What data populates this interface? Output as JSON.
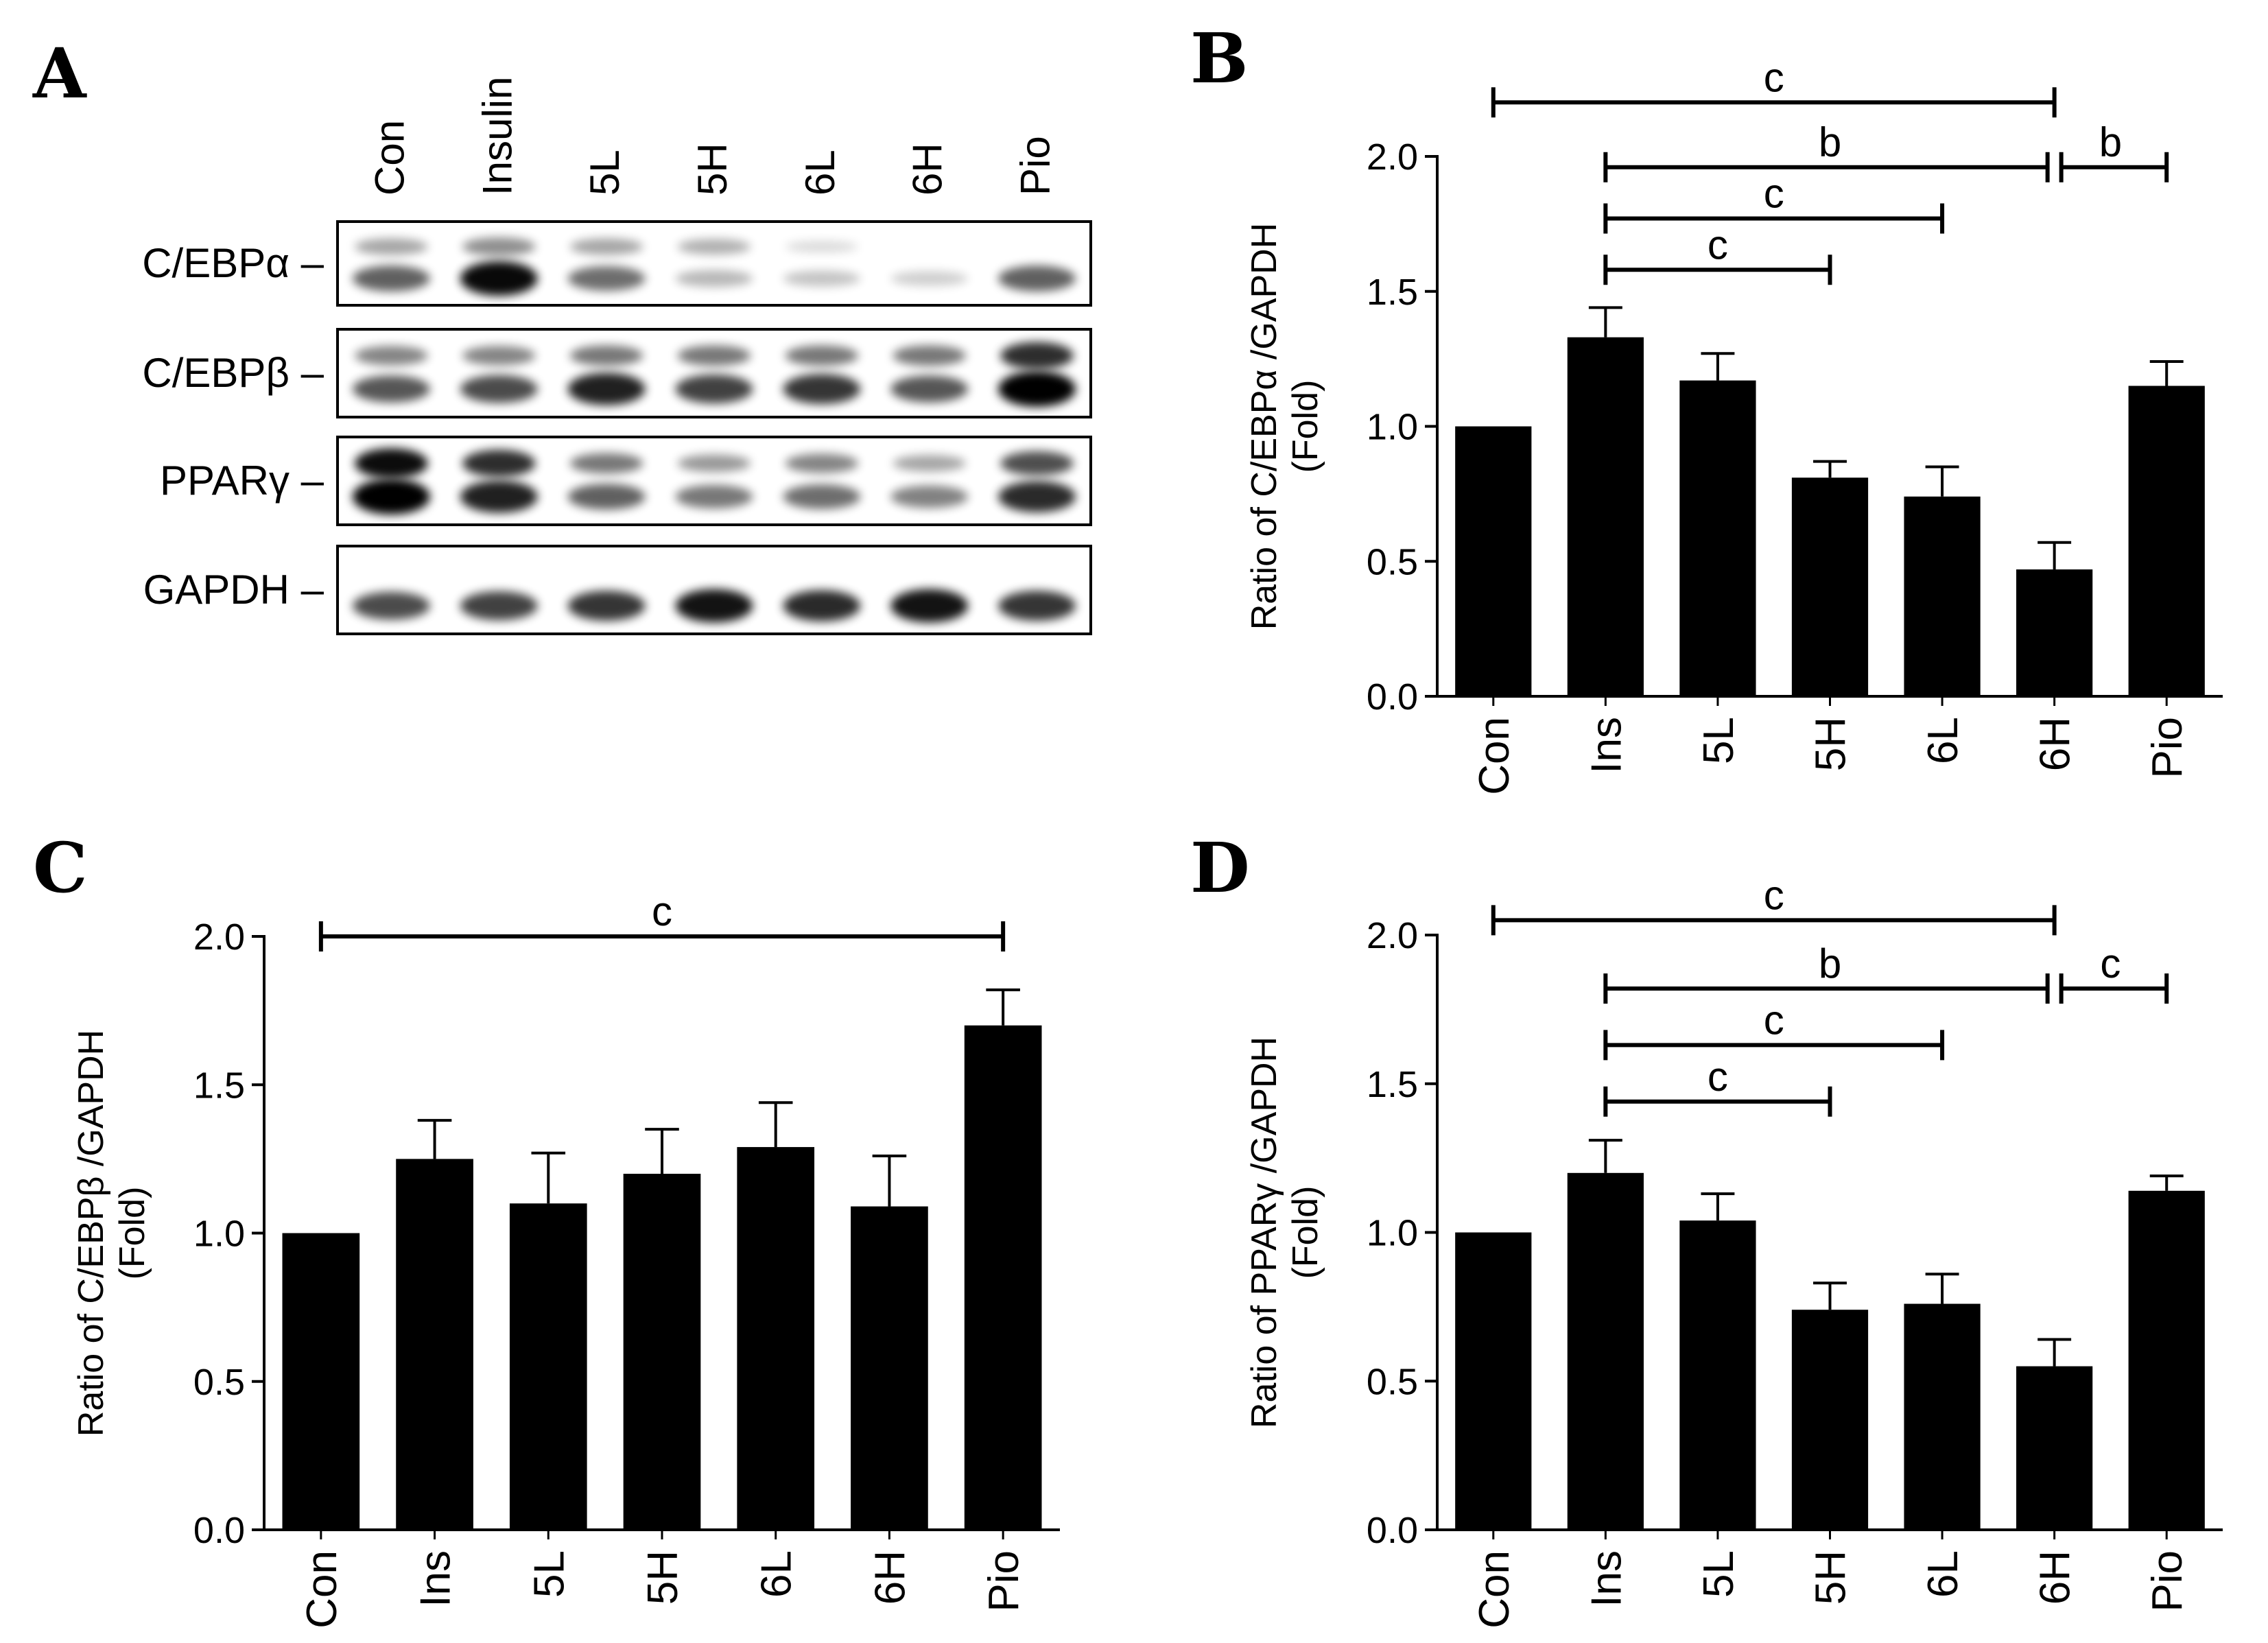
{
  "panel_a": {
    "letter": "A",
    "lanes": [
      "Con",
      "Insulin",
      "5L",
      "5H",
      "6L",
      "6H",
      "Pio"
    ],
    "blots": [
      {
        "label": "C/EBPα –",
        "bands": [
          0.55,
          0.95,
          0.5,
          0.15,
          0.1,
          0.05,
          0.55
        ],
        "upper": [
          0.3,
          0.4,
          0.3,
          0.25,
          0.05,
          0.0,
          0.0
        ]
      },
      {
        "label": "C/EBPβ –",
        "bands": [
          0.6,
          0.65,
          0.85,
          0.7,
          0.75,
          0.6,
          1.0
        ],
        "upper": [
          0.45,
          0.45,
          0.5,
          0.5,
          0.5,
          0.5,
          0.85
        ]
      },
      {
        "label": "PPARγ –",
        "bands": [
          1.0,
          0.85,
          0.55,
          0.45,
          0.5,
          0.4,
          0.8
        ],
        "upper": [
          1.0,
          0.85,
          0.5,
          0.35,
          0.45,
          0.3,
          0.7
        ]
      },
      {
        "label": "GAPDH –",
        "bands": [
          0.65,
          0.7,
          0.75,
          0.9,
          0.8,
          0.9,
          0.75
        ],
        "upper": [
          0,
          0,
          0,
          0,
          0,
          0,
          0
        ]
      }
    ]
  },
  "chart_data": [
    {
      "panel": "B",
      "type": "bar",
      "ylabel_line1": "Ratio of C/EBPα /GAPDH",
      "ylabel_line2": "(Fold)",
      "categories": [
        "Con",
        "Ins",
        "5L",
        "5H",
        "6L",
        "6H",
        "Pio"
      ],
      "values": [
        1.0,
        1.33,
        1.17,
        0.81,
        0.74,
        0.47,
        1.15
      ],
      "errors": [
        0.0,
        0.11,
        0.1,
        0.06,
        0.11,
        0.1,
        0.09
      ],
      "ylim": [
        0,
        2.0
      ],
      "yticks": [
        "0.0",
        "0.5",
        "1.0",
        "1.5",
        "2.0"
      ],
      "brackets": [
        {
          "from": 0,
          "to": 5,
          "y": 2.2,
          "label": "c"
        },
        {
          "from": 1,
          "to": 5,
          "y": 1.96,
          "label": "b"
        },
        {
          "from": 5,
          "to": 6,
          "y": 1.96,
          "label": "b"
        },
        {
          "from": 1,
          "to": 4,
          "y": 1.77,
          "label": "c"
        },
        {
          "from": 1,
          "to": 3,
          "y": 1.58,
          "label": "c"
        }
      ]
    },
    {
      "panel": "C",
      "type": "bar",
      "ylabel_line1": "Ratio of C/EBPβ /GAPDH",
      "ylabel_line2": "(Fold)",
      "categories": [
        "Con",
        "Ins",
        "5L",
        "5H",
        "6L",
        "6H",
        "Pio"
      ],
      "values": [
        1.0,
        1.25,
        1.1,
        1.2,
        1.29,
        1.09,
        1.7
      ],
      "errors": [
        0.0,
        0.13,
        0.17,
        0.15,
        0.15,
        0.17,
        0.12
      ],
      "ylim": [
        0,
        2.0
      ],
      "yticks": [
        "0.0",
        "0.5",
        "1.0",
        "1.5",
        "2.0"
      ],
      "brackets": [
        {
          "from": 0,
          "to": 6,
          "y": 2.0,
          "label": "c"
        }
      ]
    },
    {
      "panel": "D",
      "type": "bar",
      "ylabel_line1": "Ratio of PPARγ /GAPDH",
      "ylabel_line2": "(Fold)",
      "categories": [
        "Con",
        "Ins",
        "5L",
        "5H",
        "6L",
        "6H",
        "Pio"
      ],
      "values": [
        1.0,
        1.2,
        1.04,
        0.74,
        0.76,
        0.55,
        1.14
      ],
      "errors": [
        0.0,
        0.11,
        0.09,
        0.09,
        0.1,
        0.09,
        0.05
      ],
      "ylim": [
        0,
        2.0
      ],
      "yticks": [
        "0.0",
        "0.5",
        "1.0",
        "1.5",
        "2.0"
      ],
      "brackets": [
        {
          "from": 0,
          "to": 5,
          "y": 2.05,
          "label": "c"
        },
        {
          "from": 1,
          "to": 5,
          "y": 1.82,
          "label": "b"
        },
        {
          "from": 5,
          "to": 6,
          "y": 1.82,
          "label": "c"
        },
        {
          "from": 1,
          "to": 4,
          "y": 1.63,
          "label": "c"
        },
        {
          "from": 1,
          "to": 3,
          "y": 1.44,
          "label": "c"
        }
      ]
    }
  ]
}
